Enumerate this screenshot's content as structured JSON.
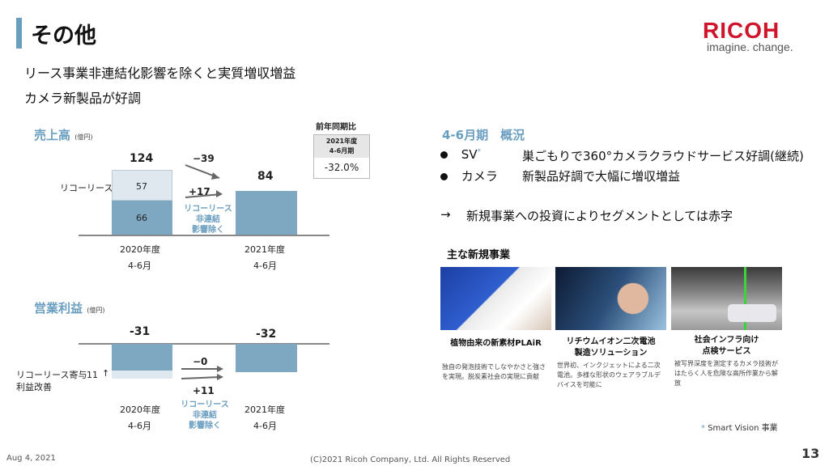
{
  "header": {
    "title": "その他",
    "logo": "RICOH",
    "tagline": "imagine. change."
  },
  "subtitles": [
    "リース事業非連結化影響を除くと実質増収増益",
    "カメラ新製品が好調"
  ],
  "sales": {
    "title": "売上高",
    "unit": "(億円)",
    "yoy_header": "前年同期比",
    "yoy_col": "2021年度 4-6月期",
    "yoy_value": "-32.0%",
    "lease_label": "リコーリース",
    "bar2020_total": "124",
    "bar2020_top": "57",
    "bar2020_bottom": "66",
    "bar2021_total": "84",
    "delta1": "−39",
    "delta2": "+17",
    "note": "リコーリース 非連結 影響除く",
    "x1": "2020年度",
    "x1b": "4-6月",
    "x2": "2021年度",
    "x2b": "4-6月"
  },
  "profit": {
    "title": "営業利益",
    "unit": "(億円)",
    "label2020": "-31",
    "label2021": "-32",
    "lease_label1": "リコーリース寄与",
    "lease_label2": "利益改善",
    "lease_value": "11",
    "delta1": "−0",
    "delta2": "+11",
    "note": "リコーリース 非連結 影響除く",
    "x1": "2020年度",
    "x1b": "4-6月",
    "x2": "2021年度",
    "x2b": "4-6月"
  },
  "overview": {
    "title": "4-6月期　概況",
    "items": [
      {
        "label": "SV",
        "mark": "*",
        "text": "巣ごもりで360°カメラクラウドサービス好調(継続)"
      },
      {
        "label": "カメラ",
        "text": "新製品好調で大幅に増収増益"
      }
    ],
    "arrow": "→",
    "conclusion": "新規事業への投資によりセグメントとしては赤字"
  },
  "new_biz": {
    "title": "主な新規事業",
    "cards": [
      {
        "title": "植物由来の新素材PLAiR",
        "desc": "独自の発泡技術でしなやかさと強さを実現。脱炭素社会の実現に貢献"
      },
      {
        "title": "リチウムイオン二次電池 製造ソリューション",
        "desc": "世界初、インクジェットによる二次電池。多様な形状のウェアラブルデバイスを可能に"
      },
      {
        "title": "社会インフラ向け 点検サービス",
        "desc": "被写界深度を測定するカメラ技術がはたらく人を危険な高所作業から解放"
      }
    ],
    "footnote_mark": "*",
    "footnote": "Smart Vision 事業"
  },
  "footer": {
    "date": "Aug 4, 2021",
    "copyright": "(C)2021 Ricoh Company, Ltd. All Rights Reserved",
    "page": "13"
  }
}
